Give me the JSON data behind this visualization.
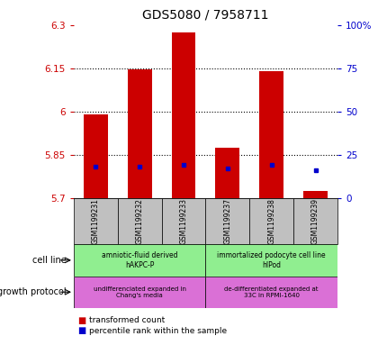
{
  "title": "GDS5080 / 7958711",
  "samples": [
    "GSM1199231",
    "GSM1199232",
    "GSM1199233",
    "GSM1199237",
    "GSM1199238",
    "GSM1199239"
  ],
  "red_values": [
    5.99,
    6.145,
    6.275,
    5.875,
    6.14,
    5.725
  ],
  "blue_values_pct": [
    18,
    18,
    19,
    17,
    19,
    16
  ],
  "ylim_left": [
    5.7,
    6.3
  ],
  "ylim_right": [
    0,
    100
  ],
  "yticks_left": [
    5.7,
    5.85,
    6.0,
    6.15,
    6.3
  ],
  "yticks_right": [
    0,
    25,
    50,
    75,
    100
  ],
  "ytick_labels_left": [
    "5.7",
    "5.85",
    "6",
    "6.15",
    "6.3"
  ],
  "ytick_labels_right": [
    "0",
    "25",
    "50",
    "75",
    "100%"
  ],
  "gridlines": [
    5.85,
    6.0,
    6.15
  ],
  "bar_bottom": 5.7,
  "bar_width": 0.55,
  "red_color": "#CC0000",
  "blue_color": "#0000CC",
  "axis_left_color": "#CC0000",
  "axis_right_color": "#0000CC",
  "cell_line_labels": [
    "amniotic-fluid derived\nhAKPC-P",
    "immortalized podocyte cell line\nhIPod"
  ],
  "cell_line_color": "#90EE90",
  "growth_protocol_labels": [
    "undifferenciated expanded in\nChang's media",
    "de-differentiated expanded at\n33C in RPMI-1640"
  ],
  "growth_protocol_color": "#DA70D6",
  "legend_items": [
    {
      "color": "#CC0000",
      "label": "transformed count"
    },
    {
      "color": "#0000CC",
      "label": "percentile rank within the sample"
    }
  ]
}
